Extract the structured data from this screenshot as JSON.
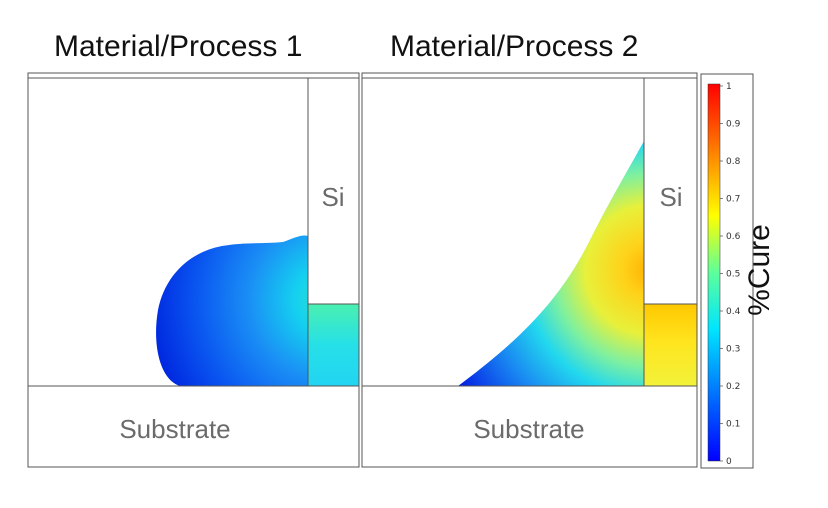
{
  "panels": [
    {
      "title": "Material/Process 1",
      "si_label": "Si",
      "substrate_label": "Substrate"
    },
    {
      "title": "Material/Process 2",
      "si_label": "Si",
      "substrate_label": "Substrate"
    }
  ],
  "colorbar": {
    "label": "%Cure",
    "ticks": [
      "1",
      "0.9",
      "0.8",
      "0.7",
      "0.6",
      "0.5",
      "0.4",
      "0.3",
      "0.2",
      "0.1",
      "0"
    ],
    "range": [
      0,
      1
    ],
    "colormap": "jet"
  }
}
